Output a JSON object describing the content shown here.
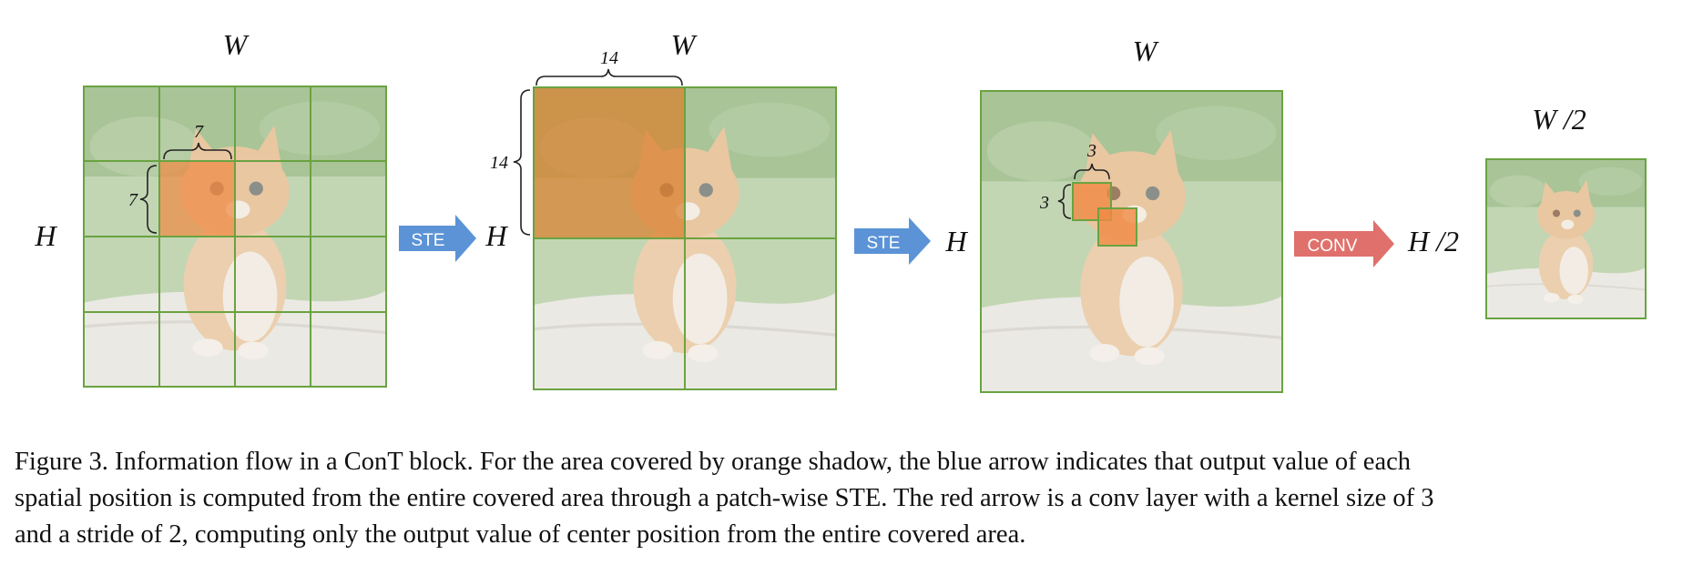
{
  "panels": [
    {
      "id": "grid-4x4",
      "width_label": "W",
      "height_label": "H",
      "patch_label_top": "7",
      "patch_label_left": "7"
    },
    {
      "id": "grid-2x2",
      "width_label": "W",
      "height_label": "H",
      "patch_label_top": "14",
      "patch_label_left": "14"
    },
    {
      "id": "conv-kernel",
      "width_label": "W",
      "height_label": "H",
      "patch_label_top": "3",
      "patch_label_left": "3"
    },
    {
      "id": "output",
      "width_label": "W /2",
      "height_label": "H /2"
    }
  ],
  "arrows": [
    {
      "label": "STE",
      "color": "#5b93d6"
    },
    {
      "label": "STE",
      "color": "#5b93d6"
    },
    {
      "label": "CONV",
      "color": "#e0706b"
    }
  ],
  "colors": {
    "grid_line": "#6aa341",
    "orange_shadow": "#f08a45",
    "grass": "#b7cfa8",
    "stone": "#e9e7e2",
    "kitten": "#e8c39a"
  },
  "caption": {
    "lines": [
      "Figure 3. Information flow in a ConT block.  For the area covered by orange shadow, the blue arrow indicates that output value of each",
      "spatial position is computed from the entire covered area through a patch-wise STE. The red arrow is a conv layer with a kernel size of 3",
      "and a stride of 2, computing only the output value of center position from the entire covered area."
    ]
  }
}
